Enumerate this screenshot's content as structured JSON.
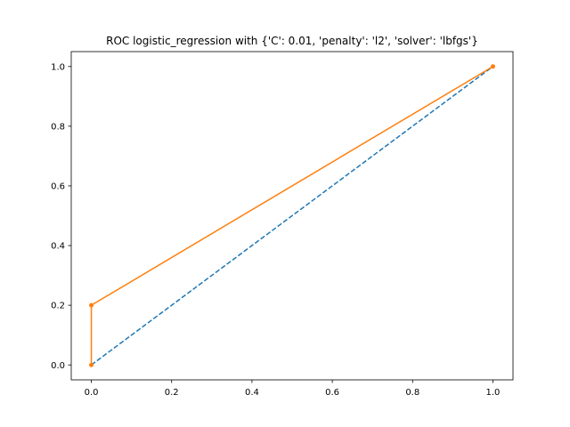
{
  "chart_data": {
    "type": "line",
    "title": "ROC logistic_regression with {'C': 0.01, 'penalty': 'l2', 'solver': 'lbfgs'}",
    "xlabel": "",
    "ylabel": "",
    "xlim": [
      -0.05,
      1.05
    ],
    "ylim": [
      -0.05,
      1.05
    ],
    "grid": false,
    "x_ticks": [
      0.0,
      0.2,
      0.4,
      0.6,
      0.8,
      1.0
    ],
    "y_ticks": [
      0.0,
      0.2,
      0.4,
      0.6,
      0.8,
      1.0
    ],
    "x_tick_labels": [
      "0.0",
      "0.2",
      "0.4",
      "0.6",
      "0.8",
      "1.0"
    ],
    "y_tick_labels": [
      "0.0",
      "0.2",
      "0.4",
      "0.6",
      "0.8",
      "1.0"
    ],
    "series": [
      {
        "color": "#1f77b4",
        "linestyle": "dashed",
        "marker": "none",
        "x": [
          0.0,
          1.0
        ],
        "y": [
          0.0,
          1.0
        ]
      },
      {
        "color": "#ff7f0e",
        "linestyle": "solid",
        "marker": "dot",
        "x": [
          0.0,
          0.0,
          1.0
        ],
        "y": [
          0.0,
          0.2,
          1.0
        ]
      }
    ]
  }
}
